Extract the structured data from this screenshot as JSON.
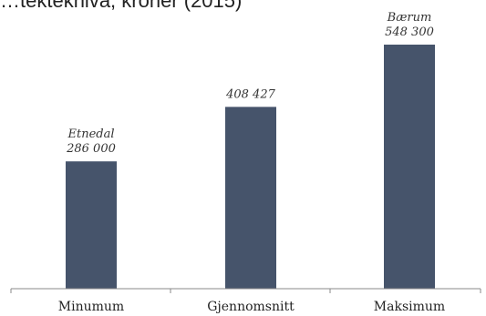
{
  "chart_data": {
    "type": "bar",
    "title": "…tektekhiva, kroner (2015)",
    "xlabel": "",
    "ylabel": "",
    "categories": [
      "Minumum",
      "Gjennomsnitt",
      "Maksimum"
    ],
    "values": [
      286000,
      408427,
      548300
    ],
    "data_labels": [
      {
        "name": "Etnedal",
        "value_text": "286 000"
      },
      {
        "name": "",
        "value_text": "408 427"
      },
      {
        "name": "Bærum",
        "value_text": "548 300"
      }
    ],
    "ylim": [
      0,
      600000
    ],
    "grid": false,
    "legend": "none",
    "bar_color": "#46546b",
    "axis_color": "#888888"
  }
}
